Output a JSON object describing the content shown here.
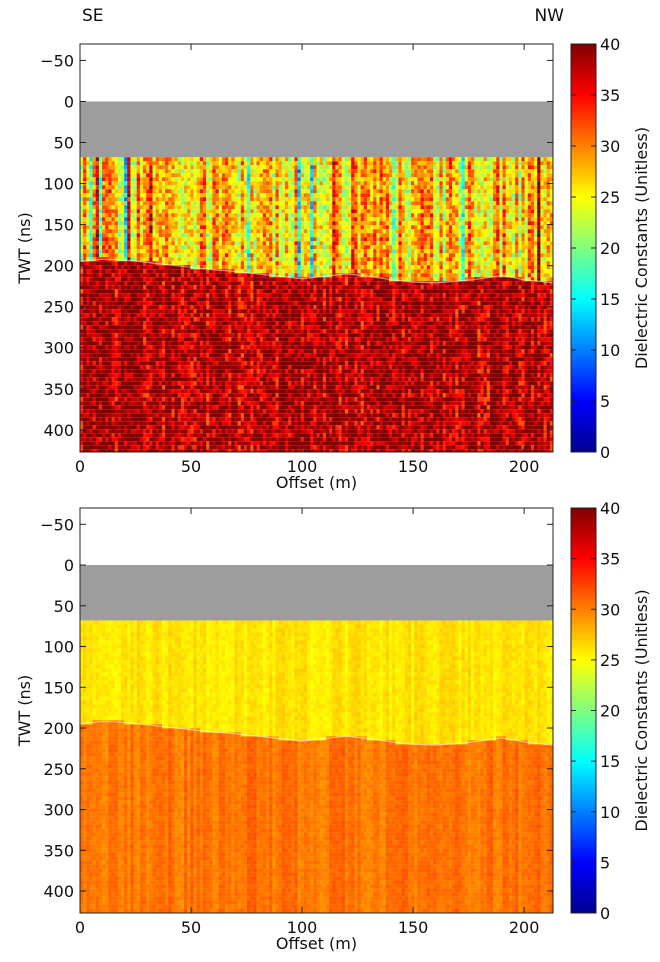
{
  "header": {
    "left_label": "SE",
    "right_label": "NW"
  },
  "chart_data": [
    {
      "type": "heatmap",
      "title": "",
      "xlabel": "Offset (m)",
      "ylabel": "TWT (ns)",
      "xlim": [
        0,
        213
      ],
      "ylim": [
        -70,
        427
      ],
      "y_reversed": true,
      "x_ticks": [
        0,
        50,
        100,
        150,
        200
      ],
      "y_ticks": [
        -50,
        0,
        50,
        100,
        150,
        200,
        250,
        300,
        350,
        400
      ],
      "colorbar": {
        "label": "Dielectric Constants (Unitless)",
        "range": [
          0,
          40
        ],
        "ticks": [
          0,
          5,
          10,
          15,
          20,
          25,
          30,
          35,
          40
        ],
        "colormap": "jet"
      },
      "masked_region": {
        "twt_range": [
          0,
          68
        ],
        "color": "#9d9d9d"
      },
      "boundary": {
        "offset": [
          0,
          10,
          20,
          30,
          40,
          50,
          60,
          70,
          80,
          90,
          100,
          110,
          120,
          130,
          140,
          150,
          160,
          170,
          180,
          190,
          200,
          213
        ],
        "twt": [
          195,
          192,
          193,
          196,
          199,
          202,
          205,
          207,
          210,
          213,
          216,
          213,
          210,
          213,
          217,
          220,
          221,
          219,
          216,
          212,
          217,
          221
        ]
      },
      "layers": [
        {
          "name": "upper",
          "twt_range": [
            68,
            "boundary"
          ],
          "mean_value": 27,
          "variability": "high"
        },
        {
          "name": "lower",
          "twt_range": [
            "boundary",
            427
          ],
          "mean_value": 38,
          "variability": "high"
        }
      ]
    },
    {
      "type": "heatmap",
      "title": "",
      "xlabel": "Offset (m)",
      "ylabel": "TWT (ns)",
      "xlim": [
        0,
        213
      ],
      "ylim": [
        -70,
        427
      ],
      "y_reversed": true,
      "x_ticks": [
        0,
        50,
        100,
        150,
        200
      ],
      "y_ticks": [
        -50,
        0,
        50,
        100,
        150,
        200,
        250,
        300,
        350,
        400
      ],
      "colorbar": {
        "label": "Dielectric Constants (Unitless)",
        "range": [
          0,
          40
        ],
        "ticks": [
          0,
          5,
          10,
          15,
          20,
          25,
          30,
          35,
          40
        ],
        "colormap": "jet"
      },
      "masked_region": {
        "twt_range": [
          0,
          68
        ],
        "color": "#9d9d9d"
      },
      "boundary": {
        "offset": [
          0,
          10,
          20,
          30,
          40,
          50,
          60,
          70,
          80,
          90,
          100,
          110,
          120,
          130,
          140,
          150,
          160,
          170,
          180,
          190,
          200,
          213
        ],
        "twt": [
          195,
          192,
          193,
          196,
          199,
          202,
          205,
          207,
          210,
          213,
          216,
          213,
          210,
          213,
          217,
          220,
          221,
          219,
          216,
          212,
          217,
          221
        ]
      },
      "layers": [
        {
          "name": "upper",
          "twt_range": [
            68,
            "boundary"
          ],
          "mean_value": 26,
          "variability": "low"
        },
        {
          "name": "lower",
          "twt_range": [
            "boundary",
            427
          ],
          "mean_value": 30.5,
          "variability": "low"
        }
      ]
    }
  ]
}
